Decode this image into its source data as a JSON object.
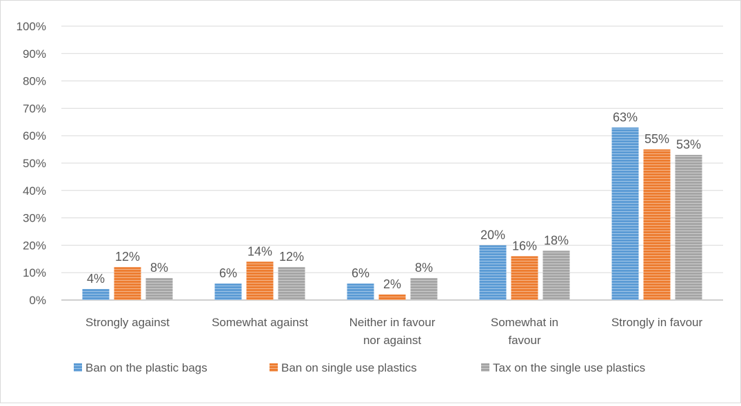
{
  "chart_data": {
    "type": "bar",
    "categories": [
      [
        "Strongly against"
      ],
      [
        "Somewhat against"
      ],
      [
        "Neither in favour",
        "nor against"
      ],
      [
        "Somewhat in",
        "favour"
      ],
      [
        "Strongly in favour"
      ]
    ],
    "series": [
      {
        "name": "Ban on the plastic bags",
        "values": [
          4,
          6,
          6,
          20,
          63
        ],
        "labels": [
          "4%",
          "6%",
          "6%",
          "20%",
          "63%"
        ]
      },
      {
        "name": "Ban on single use plastics",
        "values": [
          12,
          14,
          2,
          16,
          55
        ],
        "labels": [
          "12%",
          "14%",
          "2%",
          "16%",
          "55%"
        ]
      },
      {
        "name": "Tax on the single use plastics",
        "values": [
          8,
          12,
          8,
          18,
          53
        ],
        "labels": [
          "8%",
          "12%",
          "8%",
          "18%",
          "53%"
        ]
      }
    ],
    "ylim": [
      0,
      100
    ],
    "yticks": [
      "0%",
      "10%",
      "20%",
      "30%",
      "40%",
      "50%",
      "60%",
      "70%",
      "80%",
      "90%",
      "100%"
    ],
    "grid": true,
    "legend_position": "bottom",
    "title": "",
    "xlabel": "",
    "ylabel": ""
  },
  "colors": {
    "series": [
      "#5B9BD5",
      "#ED7D31",
      "#A5A5A5"
    ],
    "grid": "#d9d9d9",
    "axis": "#bfbfbf",
    "text": "#595959"
  }
}
